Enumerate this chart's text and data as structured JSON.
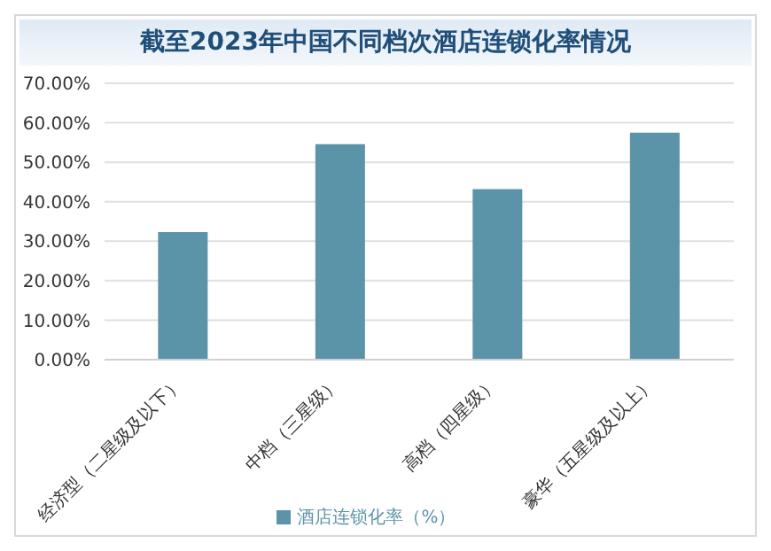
{
  "chart_data": {
    "type": "bar",
    "title": "截至2023年中国不同档次酒店连锁化率情况",
    "categories": [
      "经济型（二星级及以下）",
      "中档（三星级）",
      "高档（四星级）",
      "豪华（五星级及以上）"
    ],
    "series": [
      {
        "name": "酒店连锁化率（%）",
        "color": "#5b93a9",
        "values": [
          32.3,
          54.6,
          43.2,
          57.5
        ]
      }
    ],
    "ylim": [
      0,
      70
    ],
    "yticks": [
      {
        "value": 0,
        "label": "0.00%"
      },
      {
        "value": 10,
        "label": "10.00%"
      },
      {
        "value": 20,
        "label": "20.00%"
      },
      {
        "value": 30,
        "label": "30.00%"
      },
      {
        "value": 40,
        "label": "40.00%"
      },
      {
        "value": 50,
        "label": "50.00%"
      },
      {
        "value": 60,
        "label": "60.00%"
      },
      {
        "value": 70,
        "label": "70.00%"
      }
    ],
    "grid": "y",
    "legend": "bottom"
  }
}
